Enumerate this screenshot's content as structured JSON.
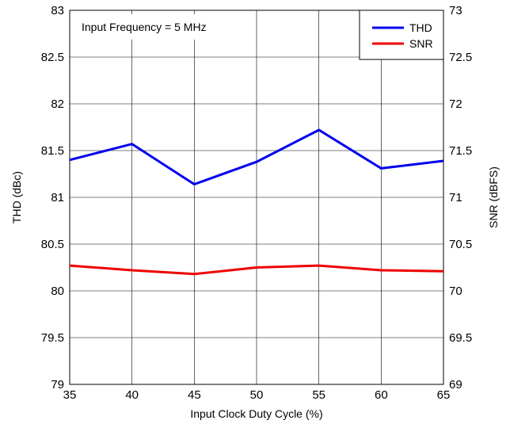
{
  "chart_data": {
    "type": "line",
    "annotation": "Input Frequency = 5 MHz",
    "xlabel": "Input Clock Duty Cycle (%)",
    "ylabel_left": "THD (dBc)",
    "ylabel_right": "SNR (dBFS)",
    "xlim": [
      35,
      65
    ],
    "ylim_left": [
      79,
      83
    ],
    "ylim_right": [
      69,
      73
    ],
    "x_ticks": [
      "35",
      "40",
      "45",
      "50",
      "55",
      "60",
      "65"
    ],
    "y_left_ticks": [
      "83",
      "82.5",
      "82",
      "81.5",
      "81",
      "80.5",
      "80",
      "79.5",
      "79"
    ],
    "y_right_ticks": [
      "73",
      "72.5",
      "72",
      "71.5",
      "71",
      "70.5",
      "70",
      "69.5",
      "69"
    ],
    "grid": true,
    "legend_position": "top-right",
    "x": [
      35,
      40,
      45,
      50,
      55,
      60,
      65
    ],
    "series": [
      {
        "name": "THD",
        "axis": "left",
        "color": "#0000ee",
        "values": [
          81.4,
          81.57,
          81.14,
          81.38,
          81.72,
          81.31,
          81.39
        ]
      },
      {
        "name": "SNR",
        "axis": "right",
        "color": "#ee0000",
        "values": [
          70.27,
          70.22,
          70.18,
          70.25,
          70.27,
          70.22,
          70.21
        ]
      }
    ]
  }
}
